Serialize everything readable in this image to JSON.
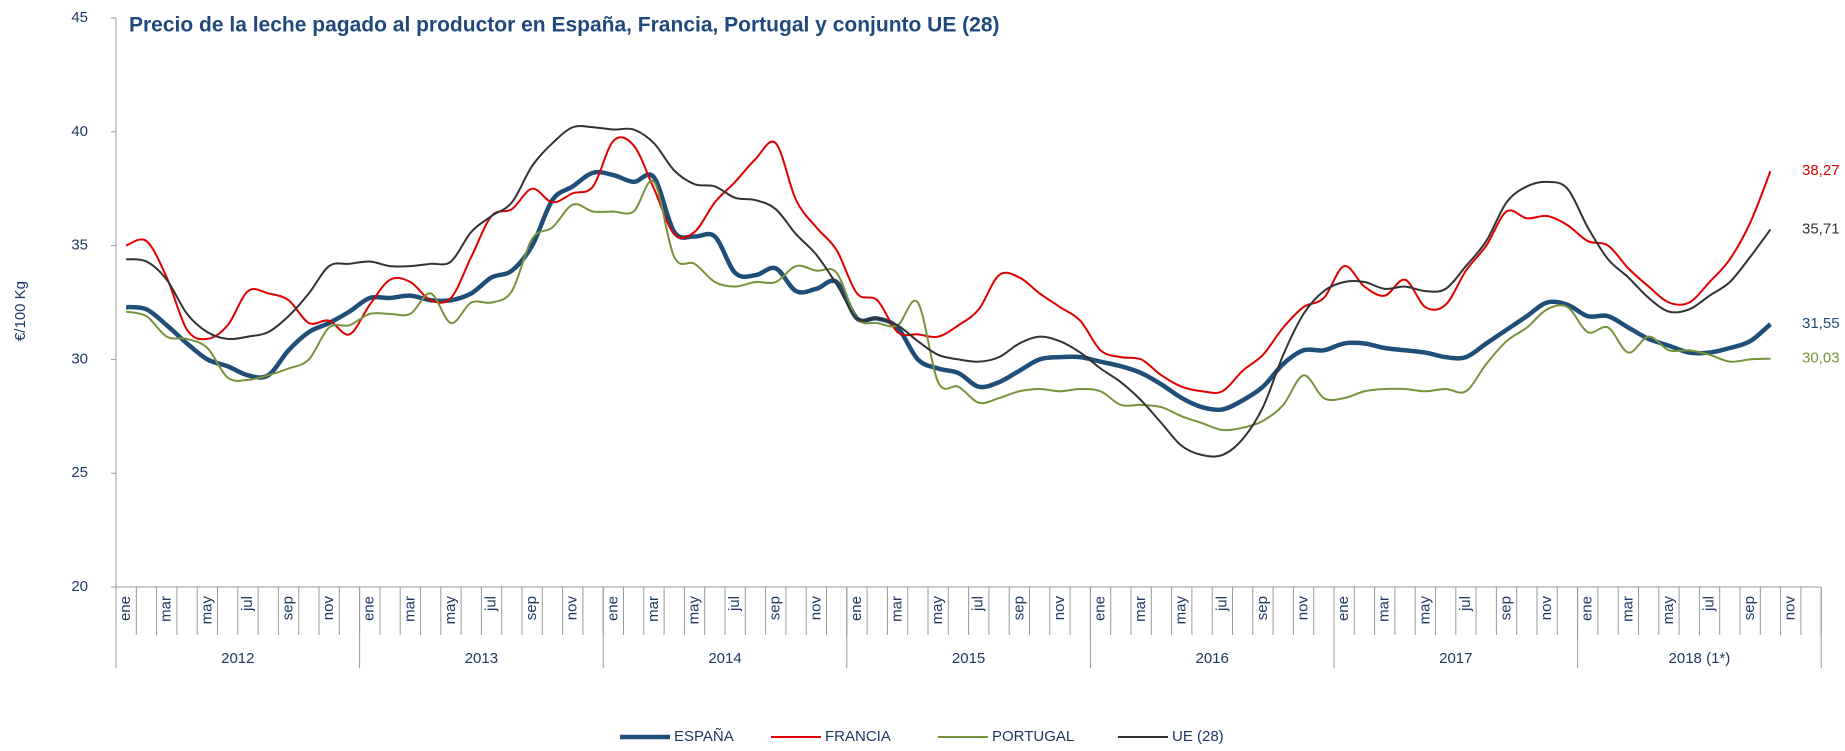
{
  "chart_data": {
    "type": "line",
    "title": "Precio de la leche pagado al productor en España,  Francia,  Portugal y conjunto  UE (28)",
    "y_label": "€/100 Kg",
    "ylim": [
      20,
      45
    ],
    "yticks": [
      20,
      25,
      30,
      35,
      40,
      45
    ],
    "categories": [
      "ene",
      null,
      "mar",
      null,
      "may",
      null,
      "jul",
      null,
      "sep",
      null,
      "nov",
      null,
      "ene",
      null,
      "mar",
      null,
      "may",
      null,
      "jul",
      null,
      "sep",
      null,
      "nov",
      null,
      "ene",
      null,
      "mar",
      null,
      "may",
      null,
      "jul",
      null,
      "sep",
      null,
      "nov",
      null,
      "ene",
      null,
      "mar",
      null,
      "may",
      null,
      "jul",
      null,
      "sep",
      null,
      "nov",
      null,
      "ene",
      null,
      "mar",
      null,
      "may",
      null,
      "jul",
      null,
      "sep",
      null,
      "nov",
      null,
      "ene",
      null,
      "mar",
      null,
      "may",
      null,
      "jul",
      null,
      "sep",
      null,
      "nov",
      null,
      "ene",
      null,
      "mar",
      null,
      "may",
      null,
      "jul",
      null,
      "sep",
      null,
      "nov",
      null
    ],
    "year_groups": [
      "2012",
      "2013",
      "2014",
      "2015",
      "2016",
      "2017",
      "2018 (1*)"
    ],
    "series": [
      {
        "name": "ESPAÑA",
        "color": "#1f4e79",
        "line_width": 4.5,
        "values": [
          32.3,
          32.2,
          31.5,
          30.7,
          30.0,
          29.7,
          29.3,
          29.3,
          30.4,
          31.2,
          31.6,
          32.1,
          32.7,
          32.7,
          32.8,
          32.6,
          32.6,
          32.9,
          33.6,
          33.9,
          35.0,
          37.0,
          37.6,
          38.2,
          38.1,
          37.8,
          38.0,
          35.6,
          35.4,
          35.4,
          33.8,
          33.7,
          34.0,
          33.0,
          33.1,
          33.4,
          31.8,
          31.8,
          31.4,
          30.0,
          29.6,
          29.4,
          28.8,
          29.0,
          29.5,
          30.0,
          30.1,
          30.1,
          29.9,
          29.7,
          29.4,
          28.9,
          28.3,
          27.9,
          27.8,
          28.2,
          28.8,
          29.8,
          30.4,
          30.4,
          30.7,
          30.7,
          30.5,
          30.4,
          30.3,
          30.1,
          30.1,
          30.7,
          31.3,
          31.9,
          32.5,
          32.4,
          31.9,
          31.9,
          31.4,
          30.9,
          30.6,
          30.3,
          30.3,
          30.5,
          30.8,
          31.55,
          null,
          null
        ],
        "value_labels": [
          null,
          null,
          null,
          null,
          null,
          null,
          null,
          null,
          null,
          null,
          null,
          null,
          null,
          null,
          null,
          null,
          null,
          null,
          null,
          null,
          null,
          null,
          null,
          null,
          null,
          null,
          null,
          null,
          null,
          null,
          null,
          null,
          null,
          null,
          null,
          null,
          null,
          null,
          null,
          null,
          null,
          null,
          null,
          null,
          null,
          null,
          null,
          null,
          null,
          null,
          null,
          null,
          null,
          null,
          null,
          null,
          null,
          null,
          null,
          null,
          null,
          null,
          null,
          null,
          null,
          null,
          null,
          null,
          null,
          null,
          null,
          null,
          null,
          null,
          null,
          null,
          null,
          null,
          null,
          null,
          null,
          "31,55",
          null,
          null
        ]
      },
      {
        "name": "FRANCIA",
        "color": "#e00000",
        "line_width": 2,
        "values": [
          35.0,
          35.2,
          33.6,
          31.3,
          30.9,
          31.5,
          33.0,
          32.9,
          32.6,
          31.6,
          31.7,
          31.1,
          32.4,
          33.5,
          33.4,
          32.6,
          32.7,
          34.5,
          36.3,
          36.6,
          37.5,
          36.9,
          37.3,
          37.6,
          39.6,
          39.4,
          37.5,
          35.5,
          35.6,
          36.9,
          37.8,
          38.8,
          39.5,
          37.0,
          35.8,
          34.8,
          32.9,
          32.6,
          31.2,
          31.1,
          31.0,
          31.5,
          32.2,
          33.7,
          33.6,
          32.9,
          32.3,
          31.7,
          30.4,
          30.1,
          30.0,
          29.3,
          28.8,
          28.6,
          28.6,
          29.5,
          30.2,
          31.4,
          32.3,
          32.7,
          34.1,
          33.2,
          32.8,
          33.5,
          32.3,
          32.4,
          33.9,
          35.0,
          36.5,
          36.2,
          36.3,
          35.9,
          35.2,
          35.0,
          34.0,
          33.2,
          32.5,
          32.5,
          33.4,
          34.4,
          36.0,
          38.27,
          null,
          null
        ],
        "value_labels": [
          null,
          null,
          null,
          null,
          null,
          null,
          null,
          null,
          null,
          null,
          null,
          null,
          null,
          null,
          null,
          null,
          null,
          null,
          null,
          null,
          null,
          null,
          null,
          null,
          null,
          null,
          null,
          null,
          null,
          null,
          null,
          null,
          null,
          null,
          null,
          null,
          null,
          null,
          null,
          null,
          null,
          null,
          null,
          null,
          null,
          null,
          null,
          null,
          null,
          null,
          null,
          null,
          null,
          null,
          null,
          null,
          null,
          null,
          null,
          null,
          null,
          null,
          null,
          null,
          null,
          null,
          null,
          null,
          null,
          null,
          null,
          null,
          null,
          null,
          null,
          null,
          null,
          null,
          null,
          null,
          null,
          "38,27",
          null,
          null
        ]
      },
      {
        "name": "PORTUGAL",
        "color": "#77933c",
        "line_width": 2,
        "values": [
          32.1,
          31.9,
          31.0,
          30.9,
          30.5,
          29.2,
          29.1,
          29.3,
          29.6,
          30.0,
          31.4,
          31.5,
          32.0,
          32.0,
          32.0,
          32.9,
          31.6,
          32.5,
          32.5,
          33.0,
          35.3,
          35.8,
          36.8,
          36.5,
          36.5,
          36.5,
          37.8,
          34.5,
          34.2,
          33.4,
          33.2,
          33.4,
          33.4,
          34.1,
          33.9,
          33.8,
          31.8,
          31.6,
          31.5,
          32.5,
          29.0,
          28.8,
          28.1,
          28.3,
          28.6,
          28.7,
          28.6,
          28.7,
          28.6,
          28.0,
          28.0,
          27.9,
          27.5,
          27.2,
          26.9,
          27.0,
          27.3,
          28.0,
          29.3,
          28.3,
          28.3,
          28.6,
          28.7,
          28.7,
          28.6,
          28.7,
          28.6,
          29.8,
          30.8,
          31.4,
          32.2,
          32.3,
          31.2,
          31.4,
          30.3,
          31.0,
          30.4,
          30.4,
          30.2,
          29.9,
          30.0,
          30.03,
          null,
          null
        ],
        "value_labels": [
          null,
          null,
          null,
          null,
          null,
          null,
          null,
          null,
          null,
          null,
          null,
          null,
          null,
          null,
          null,
          null,
          null,
          null,
          null,
          null,
          null,
          null,
          null,
          null,
          null,
          null,
          null,
          null,
          null,
          null,
          null,
          null,
          null,
          null,
          null,
          null,
          null,
          null,
          null,
          null,
          null,
          null,
          null,
          null,
          null,
          null,
          null,
          null,
          null,
          null,
          null,
          null,
          null,
          null,
          null,
          null,
          null,
          null,
          null,
          null,
          null,
          null,
          null,
          null,
          null,
          null,
          null,
          null,
          null,
          null,
          null,
          null,
          null,
          null,
          null,
          null,
          null,
          null,
          null,
          null,
          null,
          "30,03",
          null,
          null
        ]
      },
      {
        "name": "UE (28)",
        "color": "#333333",
        "line_width": 2,
        "values": [
          34.4,
          34.3,
          33.5,
          32.0,
          31.2,
          30.9,
          31.0,
          31.2,
          31.9,
          32.9,
          34.1,
          34.2,
          34.3,
          34.1,
          34.1,
          34.2,
          34.3,
          35.6,
          36.3,
          36.9,
          38.5,
          39.5,
          40.2,
          40.2,
          40.1,
          40.1,
          39.5,
          38.3,
          37.7,
          37.6,
          37.1,
          37.0,
          36.6,
          35.5,
          34.6,
          33.3,
          31.8,
          31.8,
          31.5,
          30.8,
          30.2,
          30.0,
          29.9,
          30.1,
          30.7,
          31.0,
          30.8,
          30.3,
          29.6,
          29.0,
          28.2,
          27.2,
          26.2,
          25.8,
          25.8,
          26.5,
          27.9,
          30.2,
          32.0,
          33.0,
          33.4,
          33.4,
          33.1,
          33.2,
          33.0,
          33.1,
          34.1,
          35.2,
          36.9,
          37.6,
          37.8,
          37.5,
          35.8,
          34.4,
          33.6,
          32.7,
          32.1,
          32.2,
          32.8,
          33.4,
          34.5,
          35.71,
          null,
          null
        ],
        "value_labels": [
          null,
          null,
          null,
          null,
          null,
          null,
          null,
          null,
          null,
          null,
          null,
          null,
          null,
          null,
          null,
          null,
          null,
          null,
          null,
          null,
          null,
          null,
          null,
          null,
          null,
          null,
          null,
          null,
          null,
          null,
          null,
          null,
          null,
          null,
          null,
          null,
          null,
          null,
          null,
          null,
          null,
          null,
          null,
          null,
          null,
          null,
          null,
          null,
          null,
          null,
          null,
          null,
          null,
          null,
          null,
          null,
          null,
          null,
          null,
          null,
          null,
          null,
          null,
          null,
          null,
          null,
          null,
          null,
          null,
          null,
          null,
          null,
          null,
          null,
          null,
          null,
          null,
          null,
          null,
          null,
          null,
          "35,71",
          null,
          null
        ]
      }
    ]
  }
}
